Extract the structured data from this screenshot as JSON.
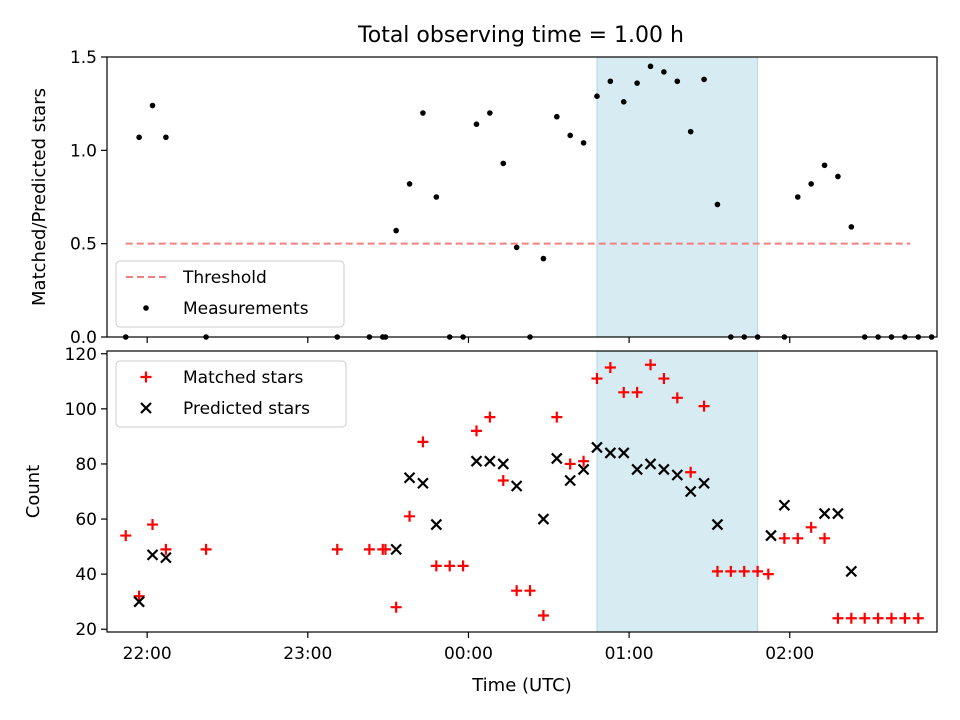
{
  "figure": {
    "title": "Total observing time = 1.00 h"
  },
  "colors": {
    "threshold": "#f08080",
    "measurement": "#000000",
    "matched": "#ff0000",
    "predicted": "#000000",
    "highlight": "#add8e6"
  },
  "chart_data": [
    {
      "type": "scatter",
      "ylabel": "Matched/Predicted stars",
      "ylim": [
        0,
        1.5
      ],
      "y_ticks": [
        "0.0",
        "0.5",
        "1.0",
        "1.5"
      ],
      "x_axis": "time",
      "xlim": [
        "21:45",
        "02:55"
      ],
      "highlight_span": [
        "00:48",
        "01:48"
      ],
      "legend_position": "lower-left",
      "legend": [
        "Threshold",
        "Measurements"
      ],
      "threshold": {
        "name": "Threshold",
        "value": 0.5,
        "x_range": [
          "21:52",
          "02:45"
        ]
      },
      "series": [
        {
          "name": "Measurements",
          "points": [
            [
              "21:52",
              0.0
            ],
            [
              "21:57",
              1.07
            ],
            [
              "22:02",
              1.24
            ],
            [
              "22:07",
              1.07
            ],
            [
              "22:22",
              0.0
            ],
            [
              "23:11",
              0.0
            ],
            [
              "23:23",
              0.0
            ],
            [
              "23:28",
              0.0
            ],
            [
              "23:29",
              0.0
            ],
            [
              "23:33",
              0.57
            ],
            [
              "23:38",
              0.82
            ],
            [
              "23:43",
              1.2
            ],
            [
              "23:48",
              0.75
            ],
            [
              "23:53",
              0.0
            ],
            [
              "23:58",
              0.0
            ],
            [
              "00:03",
              1.14
            ],
            [
              "00:08",
              1.2
            ],
            [
              "00:13",
              0.93
            ],
            [
              "00:18",
              0.48
            ],
            [
              "00:23",
              0.0
            ],
            [
              "00:28",
              0.42
            ],
            [
              "00:33",
              1.18
            ],
            [
              "00:38",
              1.08
            ],
            [
              "00:43",
              1.04
            ],
            [
              "00:48",
              1.29
            ],
            [
              "00:53",
              1.37
            ],
            [
              "00:58",
              1.26
            ],
            [
              "01:03",
              1.36
            ],
            [
              "01:08",
              1.45
            ],
            [
              "01:13",
              1.42
            ],
            [
              "01:18",
              1.37
            ],
            [
              "01:23",
              1.1
            ],
            [
              "01:28",
              1.38
            ],
            [
              "01:33",
              0.71
            ],
            [
              "01:38",
              0.0
            ],
            [
              "01:43",
              0.0
            ],
            [
              "01:48",
              0.0
            ],
            [
              "01:58",
              0.0
            ],
            [
              "02:03",
              0.75
            ],
            [
              "02:08",
              0.82
            ],
            [
              "02:13",
              0.92
            ],
            [
              "02:18",
              0.86
            ],
            [
              "02:23",
              0.59
            ],
            [
              "02:28",
              0.0
            ],
            [
              "02:33",
              0.0
            ],
            [
              "02:38",
              0.0
            ],
            [
              "02:43",
              0.0
            ],
            [
              "02:48",
              0.0
            ],
            [
              "02:53",
              0.0
            ]
          ]
        }
      ]
    },
    {
      "type": "scatter",
      "xlabel": "Time (UTC)",
      "ylabel": "Count",
      "ylim": [
        19,
        121
      ],
      "y_ticks": [
        "20",
        "40",
        "60",
        "80",
        "100",
        "120"
      ],
      "x_axis": "time",
      "xlim": [
        "21:45",
        "02:55"
      ],
      "x_ticks": [
        "22:00",
        "23:00",
        "00:00",
        "01:00",
        "02:00"
      ],
      "highlight_span": [
        "00:48",
        "01:48"
      ],
      "legend_position": "upper-left",
      "legend": [
        "Matched stars",
        "Predicted stars"
      ],
      "series": [
        {
          "name": "Matched stars",
          "marker": "plus",
          "points": [
            [
              "21:52",
              54
            ],
            [
              "21:57",
              32
            ],
            [
              "22:02",
              58
            ],
            [
              "22:07",
              49
            ],
            [
              "22:22",
              49
            ],
            [
              "23:11",
              49
            ],
            [
              "23:23",
              49
            ],
            [
              "23:28",
              49
            ],
            [
              "23:29",
              49
            ],
            [
              "23:33",
              28
            ],
            [
              "23:38",
              61
            ],
            [
              "23:43",
              88
            ],
            [
              "23:48",
              43
            ],
            [
              "23:53",
              43
            ],
            [
              "23:58",
              43
            ],
            [
              "00:03",
              92
            ],
            [
              "00:08",
              97
            ],
            [
              "00:13",
              74
            ],
            [
              "00:18",
              34
            ],
            [
              "00:23",
              34
            ],
            [
              "00:28",
              25
            ],
            [
              "00:33",
              97
            ],
            [
              "00:38",
              80
            ],
            [
              "00:43",
              81
            ],
            [
              "00:48",
              111
            ],
            [
              "00:53",
              115
            ],
            [
              "00:58",
              106
            ],
            [
              "01:03",
              106
            ],
            [
              "01:08",
              116
            ],
            [
              "01:13",
              111
            ],
            [
              "01:18",
              104
            ],
            [
              "01:23",
              77
            ],
            [
              "01:28",
              101
            ],
            [
              "01:33",
              41
            ],
            [
              "01:38",
              41
            ],
            [
              "01:43",
              41
            ],
            [
              "01:48",
              41
            ],
            [
              "01:52",
              40
            ],
            [
              "01:58",
              53
            ],
            [
              "02:03",
              53
            ],
            [
              "02:08",
              57
            ],
            [
              "02:13",
              53
            ],
            [
              "02:18",
              24
            ],
            [
              "02:23",
              24
            ],
            [
              "02:28",
              24
            ],
            [
              "02:33",
              24
            ],
            [
              "02:38",
              24
            ],
            [
              "02:43",
              24
            ],
            [
              "02:48",
              24
            ]
          ]
        },
        {
          "name": "Predicted stars",
          "marker": "x",
          "points": [
            [
              "21:57",
              30
            ],
            [
              "22:02",
              47
            ],
            [
              "22:07",
              46
            ],
            [
              "23:33",
              49
            ],
            [
              "23:38",
              75
            ],
            [
              "23:43",
              73
            ],
            [
              "23:48",
              58
            ],
            [
              "00:03",
              81
            ],
            [
              "00:08",
              81
            ],
            [
              "00:13",
              80
            ],
            [
              "00:18",
              72
            ],
            [
              "00:28",
              60
            ],
            [
              "00:33",
              82
            ],
            [
              "00:38",
              74
            ],
            [
              "00:43",
              78
            ],
            [
              "00:48",
              86
            ],
            [
              "00:53",
              84
            ],
            [
              "00:58",
              84
            ],
            [
              "01:03",
              78
            ],
            [
              "01:08",
              80
            ],
            [
              "01:13",
              78
            ],
            [
              "01:18",
              76
            ],
            [
              "01:23",
              70
            ],
            [
              "01:28",
              73
            ],
            [
              "01:33",
              58
            ],
            [
              "01:53",
              54
            ],
            [
              "01:58",
              65
            ],
            [
              "02:13",
              62
            ],
            [
              "02:18",
              62
            ],
            [
              "02:23",
              41
            ]
          ]
        }
      ]
    }
  ]
}
